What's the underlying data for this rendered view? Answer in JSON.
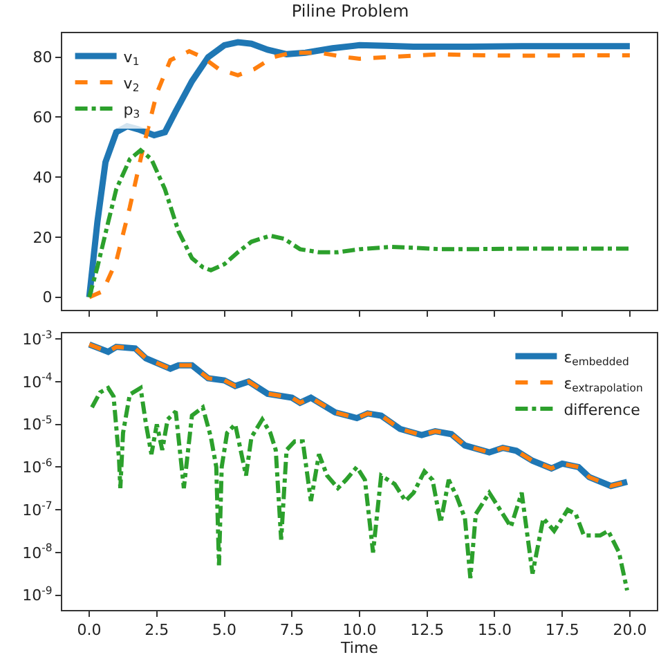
{
  "chart_data": [
    {
      "type": "line",
      "title": "Piline Problem",
      "xlim": [
        -1,
        21
      ],
      "ylim": [
        -4.2,
        88
      ],
      "xticks": [
        {
          "value": 0,
          "label": null
        },
        {
          "value": 2.5,
          "label": null
        },
        {
          "value": 5,
          "label": null
        },
        {
          "value": 7.5,
          "label": null
        },
        {
          "value": 10,
          "label": null
        },
        {
          "value": 12.5,
          "label": null
        },
        {
          "value": 15,
          "label": null
        },
        {
          "value": 17.5,
          "label": null
        },
        {
          "value": 20,
          "label": null
        }
      ],
      "yticks": [
        0,
        20,
        40,
        60,
        80
      ],
      "tick_labels": "y",
      "grid": false,
      "legend": "top left",
      "marker": "none",
      "series": [
        {
          "name": "v$_{1}$",
          "color": "#1f77b4",
          "line_style": "solid",
          "x": [
            0,
            0.3,
            0.6,
            1.0,
            1.4,
            1.8,
            2.4,
            2.8,
            3.2,
            3.8,
            4.4,
            5.0,
            5.5,
            6.0,
            6.6,
            7.3,
            8.0,
            9.0,
            10.0,
            11.0,
            12.0,
            14.0,
            16.0,
            18.0,
            20.0
          ],
          "values": [
            0,
            25,
            45,
            55,
            57,
            56,
            54,
            55,
            62,
            72,
            80,
            84,
            85,
            84.5,
            82.5,
            81,
            81.5,
            83,
            84,
            83.8,
            83.5,
            83.5,
            83.7,
            83.7,
            83.7
          ]
        },
        {
          "name": "v$_{2}$",
          "color": "#ff7f0e",
          "line_style": "dashed",
          "x": [
            0,
            0.5,
            1.0,
            1.5,
            2.0,
            2.5,
            3.0,
            3.7,
            4.2,
            4.8,
            5.5,
            6.1,
            6.8,
            7.5,
            8.5,
            9.5,
            10.0,
            11.0,
            12.0,
            13.0,
            14.0,
            16.0,
            18.0,
            20.0
          ],
          "values": [
            0,
            2,
            12,
            30,
            50,
            68,
            79,
            82,
            80,
            76,
            74,
            76,
            80,
            81.5,
            81.5,
            80,
            79.5,
            80,
            80.5,
            81,
            80.7,
            80.5,
            80.6,
            80.6
          ]
        },
        {
          "name": "p$_{3}$",
          "color": "#2ca02c",
          "line_style": "dashdot",
          "x": [
            0,
            0.3,
            0.7,
            1.0,
            1.5,
            1.9,
            2.3,
            2.8,
            3.3,
            3.8,
            4.2,
            4.5,
            5.0,
            5.5,
            6.0,
            6.7,
            7.2,
            7.8,
            8.5,
            9.2,
            10.0,
            11.2,
            12.0,
            13.0,
            14.0,
            16.0,
            18.0,
            20.0
          ],
          "values": [
            0,
            10,
            25,
            36,
            46,
            49,
            46,
            36,
            22,
            13,
            10,
            9,
            11,
            15,
            18.5,
            20.5,
            19.5,
            16,
            15,
            15,
            16,
            16.8,
            16.5,
            16,
            16,
            16.2,
            16.2,
            16.2
          ]
        }
      ]
    },
    {
      "type": "line",
      "xlabel": "Time",
      "xlim": [
        -1,
        21
      ],
      "ylim": [
        4.5e-10,
        0.00135
      ],
      "log": "y",
      "xticks": [
        {
          "value": 0,
          "label": "0.0"
        },
        {
          "value": 2.5,
          "label": "2.5"
        },
        {
          "value": 5,
          "label": "5.0"
        },
        {
          "value": 7.5,
          "label": "7.5"
        },
        {
          "value": 10,
          "label": "10.0"
        },
        {
          "value": 12.5,
          "label": "12.5"
        },
        {
          "value": 15,
          "label": "15.0"
        },
        {
          "value": 17.5,
          "label": "17.5"
        },
        {
          "value": 20,
          "label": "20.0"
        }
      ],
      "yticks": [
        {
          "value": 1e-09,
          "label": "10$^{-9}$"
        },
        {
          "value": 1e-08,
          "label": "10$^{-8}$"
        },
        {
          "value": 1e-07,
          "label": "10$^{-7}$"
        },
        {
          "value": 1e-06,
          "label": "10$^{-6}$"
        },
        {
          "value": 1e-05,
          "label": "10$^{-5}$"
        },
        {
          "value": 0.0001,
          "label": "10$^{-4}$"
        },
        {
          "value": 0.001,
          "label": "10$^{-3}$"
        }
      ],
      "grid": false,
      "legend": "top right",
      "marker": "none",
      "series": [
        {
          "name": "ε$_{embedded}$",
          "color": "#1f77b4",
          "line_style": "solid",
          "x": [
            0,
            0.7,
            1.0,
            1.7,
            2.1,
            3.0,
            3.3,
            3.8,
            4.4,
            5.0,
            5.4,
            5.9,
            6.6,
            7.5,
            7.8,
            8.2,
            9.1,
            9.9,
            10.3,
            10.8,
            11.5,
            12.3,
            12.8,
            13.4,
            13.9,
            14.8,
            15.3,
            15.8,
            16.4,
            17.1,
            17.5,
            18.1,
            18.5,
            19.3,
            19.9
          ],
          "values": [
            0.00074,
            0.0005,
            0.00065,
            0.0006,
            0.00035,
            0.0002,
            0.00024,
            0.00024,
            0.00012,
            0.000107,
            7.9e-05,
            0.0001,
            5.2e-05,
            4.2e-05,
            3.2e-05,
            4.2e-05,
            1.9e-05,
            1.4e-05,
            1.8e-05,
            1.6e-05,
            7.8e-06,
            5.6e-06,
            6.9e-06,
            5.9e-06,
            3.2e-06,
            2.2e-06,
            2.8e-06,
            2.4e-06,
            1.4e-06,
            9.3e-07,
            1.2e-06,
            1e-06,
            5.8e-07,
            3.6e-07,
            4.5e-07
          ]
        },
        {
          "name": "ε$_{extrapolation}$",
          "color": "#ff7f0e",
          "line_style": "dashed",
          "x": [
            0,
            0.7,
            1.0,
            1.7,
            2.1,
            3.0,
            3.3,
            3.8,
            4.4,
            5.0,
            5.4,
            5.9,
            6.6,
            7.5,
            7.8,
            8.2,
            9.1,
            9.9,
            10.3,
            10.8,
            11.5,
            12.3,
            12.8,
            13.4,
            13.9,
            14.8,
            15.3,
            15.8,
            16.4,
            17.1,
            17.5,
            18.1,
            18.5,
            19.3,
            19.9
          ],
          "values": [
            0.00074,
            0.0005,
            0.00065,
            0.0006,
            0.00035,
            0.0002,
            0.00024,
            0.00024,
            0.00012,
            0.000107,
            7.9e-05,
            0.0001,
            5.2e-05,
            4.2e-05,
            3.2e-05,
            4.2e-05,
            1.9e-05,
            1.4e-05,
            1.8e-05,
            1.6e-05,
            7.8e-06,
            5.6e-06,
            6.9e-06,
            5.9e-06,
            3.2e-06,
            2.2e-06,
            2.8e-06,
            2.4e-06,
            1.4e-06,
            9.3e-07,
            1.2e-06,
            1e-06,
            5.8e-07,
            3.6e-07,
            4.5e-07
          ]
        },
        {
          "name": "difference",
          "color": "#2ca02c",
          "line_style": "dashdot",
          "x": [
            0.1,
            0.4,
            0.7,
            0.9,
            1.1,
            1.15,
            1.25,
            1.5,
            1.9,
            2.1,
            2.3,
            2.5,
            2.7,
            2.9,
            3.2,
            3.5,
            3.8,
            4.2,
            4.5,
            4.7,
            4.8,
            4.9,
            5.1,
            5.4,
            5.6,
            5.8,
            6.0,
            6.4,
            6.7,
            6.9,
            7.1,
            7.3,
            7.6,
            7.9,
            8.2,
            8.5,
            8.8,
            9.2,
            9.5,
            9.9,
            10.2,
            10.5,
            10.8,
            11.3,
            11.7,
            12.0,
            12.4,
            12.7,
            13.0,
            13.3,
            13.6,
            13.9,
            14.1,
            14.3,
            14.8,
            15.2,
            15.6,
            16.0,
            16.4,
            16.8,
            17.2,
            17.7,
            18.0,
            18.3,
            18.9,
            19.2,
            19.6,
            19.9
          ],
          "values": [
            2.5e-05,
            5.6e-05,
            7.1e-05,
            4.5e-05,
            1.6e-06,
            3.2e-07,
            6.3e-06,
            5e-05,
            7.1e-05,
            1e-05,
            2e-06,
            1e-05,
            2.5e-06,
            1.3e-05,
            2e-05,
            3.2e-07,
            1.6e-05,
            2.5e-05,
            5e-06,
            1e-06,
            5e-09,
            1e-06,
            6.3e-06,
            1e-05,
            2.5e-06,
            6.3e-07,
            5e-06,
            1.3e-05,
            6.3e-06,
            2.5e-06,
            2e-08,
            2.5e-06,
            4e-06,
            4e-06,
            1.6e-07,
            2e-06,
            6.3e-07,
            3.2e-07,
            5e-07,
            1e-06,
            5e-07,
            1e-08,
            6.3e-07,
            4e-07,
            1.6e-07,
            2.5e-07,
            7.9e-07,
            5e-07,
            5e-08,
            5e-07,
            2e-07,
            6.3e-08,
            2.5e-09,
            7.9e-08,
            2.5e-07,
            1e-07,
            4e-08,
            2.5e-07,
            3.2e-09,
            6.3e-08,
            3.2e-08,
            1e-07,
            7.9e-08,
            2.5e-08,
            2.5e-08,
            3.2e-08,
            1e-08,
            1.3e-09
          ]
        }
      ]
    }
  ]
}
